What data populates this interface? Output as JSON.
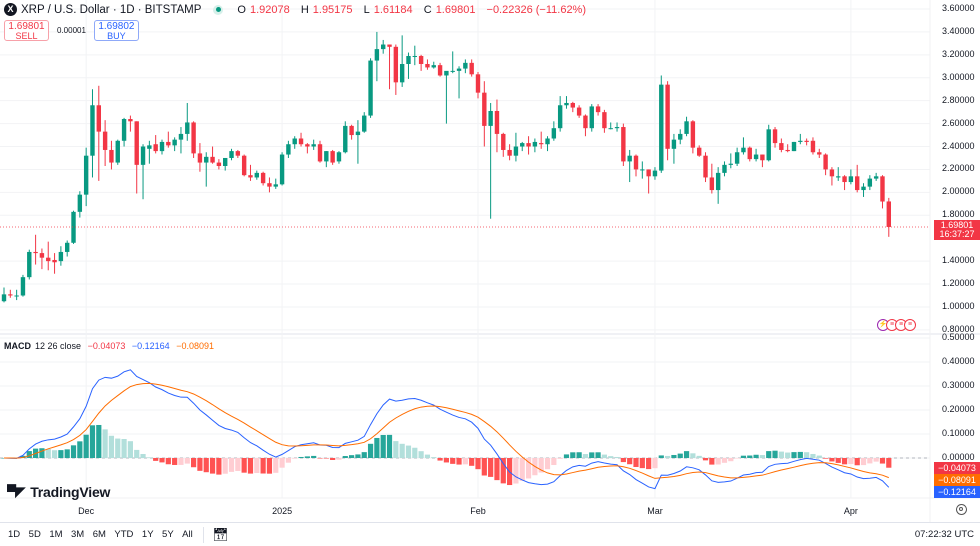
{
  "header": {
    "symbol_title": "XRP / U.S. Dollar · 1D · BITSTAMP",
    "logo_letter": "X",
    "market_status": "open",
    "ohlc": {
      "o_label": "O",
      "o": "1.92078",
      "h_label": "H",
      "h": "1.95175",
      "l_label": "L",
      "l": "1.61184",
      "c_label": "C",
      "c": "1.69801",
      "change": "−0.22326 (−11.62%)"
    }
  },
  "trade": {
    "sell_price": "1.69801",
    "sell_label": "SELL",
    "spread": "0.00001",
    "buy_price": "1.69802",
    "buy_label": "BUY"
  },
  "price_axis": {
    "ticks": [
      "3.60000",
      "3.40000",
      "3.20000",
      "3.00000",
      "2.80000",
      "2.60000",
      "2.40000",
      "2.20000",
      "2.00000",
      "1.80000",
      "1.40000",
      "1.20000",
      "1.00000",
      "0.80000"
    ],
    "last_price": "1.69801",
    "countdown": "16:37:27"
  },
  "macd": {
    "legend_name": "MACD",
    "legend_params": "12 26 close",
    "histogram": "−0.04073",
    "macd": "−0.12164",
    "signal": "−0.08091",
    "ticks": [
      "0.50000",
      "0.40000",
      "0.30000",
      "0.20000",
      "0.10000",
      "0.00000"
    ]
  },
  "time_axis": [
    {
      "label": "Dec",
      "date": "12-01"
    },
    {
      "label": "2025",
      "date": "01-01"
    },
    {
      "label": "Feb",
      "date": "02-01"
    },
    {
      "label": "Mar",
      "date": "03-01"
    },
    {
      "label": "Apr",
      "date": "04-01"
    }
  ],
  "brand": "TradingView",
  "ranges": [
    "1D",
    "5D",
    "1M",
    "3M",
    "6M",
    "YTD",
    "1Y",
    "5Y",
    "All"
  ],
  "clock": "07:22:32 UTC",
  "colors": {
    "up": "#089981",
    "down": "#f23645",
    "macd": "#2962ff",
    "signal": "#ff6d00",
    "hist_up_strong": "#26a69a",
    "hist_up_weak": "#b2dfdb",
    "hist_down_strong": "#ff5252",
    "hist_down_weak": "#ffcdd2"
  },
  "chart_data": {
    "type": "candlestick",
    "interval": "1D",
    "ylim": [
      0.8,
      3.6
    ],
    "macd_ylim": [
      -0.15,
      0.5
    ],
    "grid": true,
    "columns": [
      "date",
      "open",
      "high",
      "low",
      "close"
    ],
    "candles": [
      [
        "11-18",
        1.05,
        1.17,
        1.04,
        1.11
      ],
      [
        "11-19",
        1.11,
        1.15,
        1.08,
        1.1
      ],
      [
        "11-20",
        1.1,
        1.15,
        1.06,
        1.1
      ],
      [
        "11-21",
        1.1,
        1.28,
        1.09,
        1.26
      ],
      [
        "11-22",
        1.26,
        1.5,
        1.24,
        1.48
      ],
      [
        "11-23",
        1.48,
        1.63,
        1.37,
        1.47
      ],
      [
        "11-24",
        1.47,
        1.51,
        1.33,
        1.43
      ],
      [
        "11-25",
        1.43,
        1.57,
        1.32,
        1.4
      ],
      [
        "11-26",
        1.41,
        1.47,
        1.29,
        1.39
      ],
      [
        "11-27",
        1.4,
        1.53,
        1.36,
        1.48
      ],
      [
        "11-28",
        1.48,
        1.58,
        1.44,
        1.56
      ],
      [
        "11-29",
        1.56,
        1.84,
        1.55,
        1.83
      ],
      [
        "11-30",
        1.83,
        2.01,
        1.78,
        1.98
      ],
      [
        "12-01",
        1.98,
        2.39,
        1.88,
        2.32
      ],
      [
        "12-02",
        2.32,
        2.9,
        2.13,
        2.76
      ],
      [
        "12-03",
        2.76,
        2.93,
        2.1,
        2.53
      ],
      [
        "12-04",
        2.53,
        2.63,
        2.23,
        2.37
      ],
      [
        "12-05",
        2.37,
        2.45,
        2.2,
        2.26
      ],
      [
        "12-06",
        2.26,
        2.46,
        2.24,
        2.45
      ],
      [
        "12-07",
        2.45,
        2.65,
        2.4,
        2.64
      ],
      [
        "12-08",
        2.64,
        2.67,
        2.53,
        2.62
      ],
      [
        "12-09",
        2.62,
        2.62,
        1.99,
        2.24
      ],
      [
        "12-10",
        2.24,
        2.42,
        1.94,
        2.4
      ],
      [
        "12-11",
        2.38,
        2.45,
        2.25,
        2.41
      ],
      [
        "12-12",
        2.42,
        2.5,
        2.34,
        2.36
      ],
      [
        "12-13",
        2.36,
        2.46,
        2.33,
        2.44
      ],
      [
        "12-14",
        2.44,
        2.53,
        2.39,
        2.41
      ],
      [
        "12-15",
        2.41,
        2.48,
        2.36,
        2.46
      ],
      [
        "12-16",
        2.46,
        2.57,
        2.34,
        2.51
      ],
      [
        "12-17",
        2.51,
        2.78,
        2.45,
        2.61
      ],
      [
        "12-18",
        2.61,
        2.62,
        2.3,
        2.34
      ],
      [
        "12-19",
        2.34,
        2.43,
        2.18,
        2.26
      ],
      [
        "12-20",
        2.26,
        2.35,
        2.05,
        2.31
      ],
      [
        "12-21",
        2.31,
        2.4,
        2.25,
        2.26
      ],
      [
        "12-22",
        2.26,
        2.29,
        2.2,
        2.23
      ],
      [
        "12-23",
        2.23,
        2.3,
        2.19,
        2.3
      ],
      [
        "12-24",
        2.3,
        2.38,
        2.28,
        2.36
      ],
      [
        "12-25",
        2.36,
        2.37,
        2.3,
        2.32
      ],
      [
        "12-26",
        2.32,
        2.33,
        2.14,
        2.15
      ],
      [
        "12-27",
        2.15,
        2.24,
        2.1,
        2.13
      ],
      [
        "12-28",
        2.13,
        2.19,
        2.11,
        2.17
      ],
      [
        "12-29",
        2.17,
        2.18,
        2.06,
        2.08
      ],
      [
        "12-30",
        2.08,
        2.13,
        2.0,
        2.05
      ],
      [
        "12-31",
        2.05,
        2.12,
        2.03,
        2.07
      ],
      [
        "01-01",
        2.07,
        2.35,
        2.06,
        2.33
      ],
      [
        "01-02",
        2.33,
        2.45,
        2.3,
        2.42
      ],
      [
        "01-03",
        2.42,
        2.49,
        2.38,
        2.47
      ],
      [
        "01-04",
        2.47,
        2.52,
        2.4,
        2.42
      ],
      [
        "01-05",
        2.42,
        2.43,
        2.34,
        2.4
      ],
      [
        "01-06",
        2.4,
        2.46,
        2.37,
        2.42
      ],
      [
        "01-07",
        2.42,
        2.45,
        2.26,
        2.27
      ],
      [
        "01-08",
        2.27,
        2.36,
        2.22,
        2.36
      ],
      [
        "01-09",
        2.36,
        2.37,
        2.24,
        2.26
      ],
      [
        "01-10",
        2.27,
        2.36,
        2.25,
        2.35
      ],
      [
        "01-11",
        2.35,
        2.62,
        2.34,
        2.58
      ],
      [
        "01-12",
        2.58,
        2.59,
        2.46,
        2.5
      ],
      [
        "01-13",
        2.5,
        2.63,
        2.25,
        2.53
      ],
      [
        "01-14",
        2.53,
        2.7,
        2.52,
        2.67
      ],
      [
        "01-15",
        2.67,
        3.17,
        2.65,
        3.15
      ],
      [
        "01-16",
        3.15,
        3.4,
        2.97,
        3.25
      ],
      [
        "01-17",
        3.25,
        3.33,
        3.21,
        3.29
      ],
      [
        "01-18",
        3.29,
        3.29,
        2.9,
        3.27
      ],
      [
        "01-19",
        3.27,
        3.29,
        2.85,
        2.96
      ],
      [
        "01-20",
        2.96,
        3.37,
        2.92,
        3.12
      ],
      [
        "01-21",
        3.12,
        3.22,
        2.99,
        3.19
      ],
      [
        "01-22",
        3.19,
        3.28,
        3.11,
        3.19
      ],
      [
        "01-23",
        3.19,
        3.2,
        3.06,
        3.12
      ],
      [
        "01-24",
        3.12,
        3.16,
        3.07,
        3.09
      ],
      [
        "01-25",
        3.09,
        3.14,
        3.08,
        3.11
      ],
      [
        "01-26",
        3.11,
        3.13,
        3.01,
        3.02
      ],
      [
        "01-27",
        3.02,
        3.05,
        2.6,
        3.06
      ],
      [
        "01-28",
        3.06,
        3.23,
        3.04,
        3.06
      ],
      [
        "01-29",
        3.06,
        3.1,
        2.82,
        3.08
      ],
      [
        "01-30",
        3.08,
        3.16,
        3.04,
        3.13
      ],
      [
        "01-31",
        3.13,
        3.16,
        3.01,
        3.03
      ],
      [
        "02-01",
        3.03,
        3.05,
        2.82,
        2.87
      ],
      [
        "02-02",
        2.87,
        2.97,
        2.4,
        2.58
      ],
      [
        "02-03",
        2.58,
        2.78,
        1.77,
        2.71
      ],
      [
        "02-04",
        2.71,
        2.81,
        2.35,
        2.51
      ],
      [
        "02-05",
        2.51,
        2.52,
        2.31,
        2.37
      ],
      [
        "02-06",
        2.37,
        2.42,
        2.28,
        2.32
      ],
      [
        "02-07",
        2.32,
        2.52,
        2.27,
        2.4
      ],
      [
        "02-08",
        2.4,
        2.44,
        2.36,
        2.43
      ],
      [
        "02-09",
        2.43,
        2.49,
        2.33,
        2.4
      ],
      [
        "02-10",
        2.4,
        2.47,
        2.35,
        2.44
      ],
      [
        "02-11",
        2.43,
        2.53,
        2.38,
        2.42
      ],
      [
        "02-12",
        2.42,
        2.49,
        2.36,
        2.47
      ],
      [
        "02-13",
        2.47,
        2.62,
        2.45,
        2.56
      ],
      [
        "02-14",
        2.56,
        2.84,
        2.53,
        2.76
      ],
      [
        "02-15",
        2.76,
        2.84,
        2.73,
        2.78
      ],
      [
        "02-16",
        2.78,
        2.79,
        2.7,
        2.74
      ],
      [
        "02-17",
        2.74,
        2.76,
        2.65,
        2.67
      ],
      [
        "02-18",
        2.67,
        2.68,
        2.49,
        2.56
      ],
      [
        "02-19",
        2.56,
        2.77,
        2.53,
        2.75
      ],
      [
        "02-20",
        2.75,
        2.77,
        2.67,
        2.7
      ],
      [
        "02-21",
        2.7,
        2.72,
        2.52,
        2.56
      ],
      [
        "02-22",
        2.56,
        2.61,
        2.55,
        2.56
      ],
      [
        "02-23",
        2.56,
        2.61,
        2.53,
        2.57
      ],
      [
        "02-24",
        2.57,
        2.6,
        2.23,
        2.27
      ],
      [
        "02-25",
        2.27,
        2.37,
        2.09,
        2.32
      ],
      [
        "02-26",
        2.32,
        2.33,
        2.14,
        2.2
      ],
      [
        "02-27",
        2.2,
        2.27,
        2.12,
        2.2
      ],
      [
        "02-28",
        2.2,
        2.2,
        1.99,
        2.14
      ],
      [
        "03-01",
        2.14,
        2.22,
        2.11,
        2.19
      ],
      [
        "03-02",
        2.19,
        3.02,
        2.17,
        2.94
      ],
      [
        "03-03",
        2.94,
        2.97,
        2.28,
        2.38
      ],
      [
        "03-04",
        2.38,
        2.51,
        2.25,
        2.46
      ],
      [
        "03-05",
        2.46,
        2.55,
        2.42,
        2.51
      ],
      [
        "03-06",
        2.51,
        2.66,
        2.49,
        2.62
      ],
      [
        "03-07",
        2.62,
        2.63,
        2.34,
        2.39
      ],
      [
        "03-08",
        2.39,
        2.41,
        2.31,
        2.32
      ],
      [
        "03-09",
        2.32,
        2.35,
        2.09,
        2.13
      ],
      [
        "03-10",
        2.13,
        2.25,
        1.99,
        2.02
      ],
      [
        "03-11",
        2.02,
        2.22,
        1.9,
        2.17
      ],
      [
        "03-12",
        2.17,
        2.27,
        2.14,
        2.24
      ],
      [
        "03-13",
        2.24,
        2.34,
        2.21,
        2.25
      ],
      [
        "03-14",
        2.25,
        2.39,
        2.23,
        2.35
      ],
      [
        "03-15",
        2.35,
        2.48,
        2.33,
        2.39
      ],
      [
        "03-16",
        2.39,
        2.4,
        2.27,
        2.29
      ],
      [
        "03-17",
        2.29,
        2.38,
        2.27,
        2.33
      ],
      [
        "03-18",
        2.33,
        2.33,
        2.22,
        2.28
      ],
      [
        "03-19",
        2.28,
        2.59,
        2.27,
        2.55
      ],
      [
        "03-20",
        2.55,
        2.57,
        2.39,
        2.43
      ],
      [
        "03-21",
        2.43,
        2.47,
        2.35,
        2.37
      ],
      [
        "03-22",
        2.37,
        2.42,
        2.35,
        2.36
      ],
      [
        "03-23",
        2.36,
        2.44,
        2.36,
        2.44
      ],
      [
        "03-24",
        2.44,
        2.51,
        2.42,
        2.45
      ],
      [
        "03-25",
        2.45,
        2.47,
        2.41,
        2.44
      ],
      [
        "03-26",
        2.45,
        2.48,
        2.33,
        2.35
      ],
      [
        "03-27",
        2.35,
        2.38,
        2.3,
        2.33
      ],
      [
        "03-28",
        2.33,
        2.34,
        2.15,
        2.2
      ],
      [
        "03-29",
        2.2,
        2.22,
        2.06,
        2.14
      ],
      [
        "03-30",
        2.13,
        2.22,
        2.1,
        2.14
      ],
      [
        "03-31",
        2.14,
        2.15,
        2.02,
        2.09
      ],
      [
        "04-01",
        2.09,
        2.2,
        2.07,
        2.14
      ],
      [
        "04-02",
        2.14,
        2.24,
        2.0,
        2.02
      ],
      [
        "04-03",
        2.02,
        2.08,
        1.96,
        2.05
      ],
      [
        "04-04",
        2.05,
        2.15,
        2.02,
        2.12
      ],
      [
        "04-05",
        2.12,
        2.17,
        2.1,
        2.14
      ],
      [
        "04-06",
        2.14,
        2.15,
        1.86,
        1.92
      ],
      [
        "04-07",
        1.92078,
        1.95175,
        1.61184,
        1.69801
      ]
    ]
  }
}
